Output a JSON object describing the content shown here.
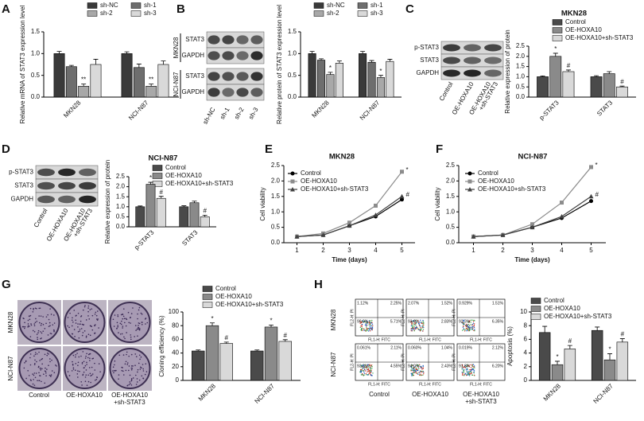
{
  "panels": [
    "A",
    "B",
    "C",
    "D",
    "E",
    "F",
    "G",
    "H"
  ],
  "blots": [
    {
      "groups": [
        {
          "name": "MKN28",
          "rows": [
            "STAT3",
            "GAPDH"
          ]
        },
        {
          "name": "NCI-N87",
          "rows": [
            "STAT3",
            "GAPDH"
          ]
        }
      ],
      "lanes": [
        [
          "sh-NC"
        ],
        [
          "sh-1"
        ],
        [
          "sh-2"
        ],
        [
          "sh-3"
        ]
      ]
    },
    {
      "groups": [
        {
          "rows": [
            "p-STAT3",
            "STAT3",
            "GAPDH"
          ]
        }
      ],
      "lanes": [
        [
          "Control"
        ],
        [
          "OE-HOXA10"
        ],
        [
          "OE-HOXA10",
          "+sh-STAT3"
        ]
      ]
    },
    {
      "groups": [
        {
          "rows": [
            "p-STAT3",
            "STAT3",
            "GAPDH"
          ]
        }
      ],
      "lanes": [
        [
          "Control"
        ],
        [
          "OE-HOXA10"
        ],
        [
          "OE-HOXA10",
          "+sh-STAT3"
        ]
      ]
    }
  ],
  "colonies": {
    "rows": [
      "MKN28",
      "NCI-N87"
    ],
    "columns": [
      [
        "Control"
      ],
      [
        "OE-HOXA10"
      ],
      [
        "OE-HOXA10",
        "+sh-STAT3"
      ]
    ]
  },
  "flow": {
    "rows": [
      "MKN28",
      "NCI-N87"
    ],
    "columns": [
      [
        "Control"
      ],
      [
        "OE-HOXA10"
      ],
      [
        "OE-HOXA10",
        "+sh-STAT3"
      ]
    ],
    "y_label": "FL2-H: PI",
    "x_label": "FL1-H: FITC",
    "quadrants": [
      [
        [
          "1.12%",
          "2.25%",
          "90.9%",
          "5.71%"
        ],
        [
          "2.07%",
          "1.52%",
          "93.6%",
          "2.83%"
        ],
        [
          "0.929%",
          "1.51%",
          "92.3%",
          "6.35%"
        ]
      ],
      [
        [
          "0.061%",
          "2.11%",
          "93.3%",
          "4.55%"
        ],
        [
          "0.060%",
          "1.04%",
          "94.0%",
          "2.43%"
        ],
        [
          "0.019%",
          "2.12%",
          "91.8%",
          "6.20%"
        ]
      ]
    ]
  },
  "chart_data": [
    {
      "type": "bar",
      "y_label": "Relative mRNA of STAT3 expression level",
      "categories": [
        "MKN28",
        "NCI-N87"
      ],
      "ylim": [
        0,
        1.5
      ],
      "yticks": [
        {
          "value": 0,
          "label": "0.0"
        },
        0.5,
        {
          "value": 1,
          "label": "1.0"
        },
        1.5
      ],
      "series": [
        {
          "name": "sh-NC",
          "color": "#3a3a3a",
          "values": [
            1.0,
            1.0
          ],
          "errors": [
            0.05,
            0.04
          ],
          "sig": [
            null,
            null
          ]
        },
        {
          "name": "sh-1",
          "color": "#6e6e6e",
          "values": [
            0.7,
            0.68
          ],
          "errors": [
            0.03,
            0.08
          ],
          "sig": [
            null,
            null
          ]
        },
        {
          "name": "sh-2",
          "color": "#a8a8a8",
          "values": [
            0.25,
            0.25
          ],
          "errors": [
            0.05,
            0.05
          ],
          "sig": [
            "**",
            "**"
          ]
        },
        {
          "name": "sh-3",
          "color": "#d9d9d9",
          "values": [
            0.75,
            0.75
          ],
          "errors": [
            0.12,
            0.08
          ],
          "sig": [
            null,
            null
          ]
        }
      ]
    },
    {
      "type": "bar",
      "y_label": "Relative protein of STAT3 expression level",
      "categories": [
        "MKN28",
        "NCI-N87"
      ],
      "ylim": [
        0,
        1.5
      ],
      "yticks": [
        {
          "value": 0,
          "label": "0.0"
        },
        0.5,
        {
          "value": 1,
          "label": "1.0"
        },
        1.5
      ],
      "series": [
        {
          "name": "sh-NC",
          "color": "#3a3a3a",
          "values": [
            1.0,
            1.0
          ],
          "errors": [
            0.05,
            0.05
          ],
          "sig": [
            null,
            null
          ]
        },
        {
          "name": "sh-1",
          "color": "#6e6e6e",
          "values": [
            0.85,
            0.8
          ],
          "errors": [
            0.03,
            0.04
          ],
          "sig": [
            null,
            null
          ]
        },
        {
          "name": "sh-2",
          "color": "#a8a8a8",
          "values": [
            0.52,
            0.45
          ],
          "errors": [
            0.05,
            0.05
          ],
          "sig": [
            "*",
            "*"
          ]
        },
        {
          "name": "sh-3",
          "color": "#d9d9d9",
          "values": [
            0.78,
            0.82
          ],
          "errors": [
            0.05,
            0.05
          ],
          "sig": [
            null,
            null
          ]
        }
      ]
    },
    {
      "type": "bar",
      "title": "MKN28",
      "y_label": "Relative expression of protein",
      "categories": [
        "p-STAT3",
        "STAT3"
      ],
      "ylim": [
        0,
        2.5
      ],
      "yticks": [
        {
          "value": 0,
          "label": "0.0"
        },
        0.5,
        {
          "value": 1,
          "label": "1.0"
        },
        1.5,
        {
          "value": 2,
          "label": "2.0"
        },
        2.5
      ],
      "series": [
        {
          "name": "Control",
          "color": "#4a4a4a",
          "values": [
            1.0,
            1.0
          ],
          "errors": [
            0.04,
            0.05
          ],
          "sig": [
            null,
            null
          ]
        },
        {
          "name": "OE-HOXA10",
          "color": "#8a8a8a",
          "values": [
            2.0,
            1.15
          ],
          "errors": [
            0.15,
            0.1
          ],
          "sig": [
            "*",
            null
          ]
        },
        {
          "name": "OE-HOXA10+sh-STAT3",
          "color": "#d9d9d9",
          "values": [
            1.25,
            0.5
          ],
          "errors": [
            0.08,
            0.04
          ],
          "sig": [
            "#",
            "#"
          ]
        }
      ]
    },
    {
      "type": "bar",
      "title": "NCI-N87",
      "y_label": "Relative expression of protein",
      "categories": [
        "p-STAT3",
        "STAT3"
      ],
      "ylim": [
        0,
        2.5
      ],
      "yticks": [
        {
          "value": 0,
          "label": "0.0"
        },
        0.5,
        {
          "value": 1,
          "label": "1.0"
        },
        1.5,
        {
          "value": 2,
          "label": "2.0"
        },
        2.5
      ],
      "series": [
        {
          "name": "Control",
          "color": "#4a4a4a",
          "values": [
            1.0,
            1.0
          ],
          "errors": [
            0.04,
            0.05
          ],
          "sig": [
            null,
            null
          ]
        },
        {
          "name": "OE-HOXA10",
          "color": "#8a8a8a",
          "values": [
            2.12,
            1.2
          ],
          "errors": [
            0.1,
            0.08
          ],
          "sig": [
            "*",
            null
          ]
        },
        {
          "name": "OE-HOXA10+sh-STAT3",
          "color": "#d9d9d9",
          "values": [
            1.42,
            0.5
          ],
          "errors": [
            0.1,
            0.08
          ],
          "sig": [
            "#",
            "#"
          ]
        }
      ]
    },
    {
      "type": "line",
      "title": "MKN28",
      "x_label": "Time (days)",
      "y_label": "Cell viability",
      "x": [
        1,
        2,
        3,
        4,
        5
      ],
      "xlim": [
        0.5,
        5.5
      ],
      "xticks": [
        1,
        2,
        3,
        4,
        5
      ],
      "ylim": [
        0,
        2.5
      ],
      "yticks": [
        {
          "value": 0,
          "label": "0.0"
        },
        0.5,
        {
          "value": 1,
          "label": "1.0"
        },
        1.5,
        {
          "value": 2,
          "label": "2.0"
        },
        2.5
      ],
      "series": [
        {
          "name": "Control",
          "color": "#000000",
          "marker": "circle",
          "values": [
            0.2,
            0.25,
            0.55,
            0.85,
            1.4
          ],
          "sig": [
            null,
            null,
            null,
            null,
            null
          ]
        },
        {
          "name": "OE-HOXA10",
          "color": "#8c8c8c",
          "marker": "square",
          "values": [
            0.2,
            0.3,
            0.65,
            1.2,
            2.3
          ],
          "sig": [
            null,
            null,
            null,
            null,
            "*"
          ]
        },
        {
          "name": "OE-HOXA10+sh-STAT3",
          "color": "#404040",
          "marker": "triangle",
          "values": [
            0.2,
            0.25,
            0.55,
            0.9,
            1.5
          ],
          "sig": [
            null,
            null,
            null,
            null,
            "#"
          ]
        }
      ]
    },
    {
      "type": "line",
      "title": "NCI-N87",
      "x_label": "Time (days)",
      "y_label": "Cell viability",
      "x": [
        1,
        2,
        3,
        4,
        5
      ],
      "xlim": [
        0.5,
        5.5
      ],
      "xticks": [
        1,
        2,
        3,
        4,
        5
      ],
      "ylim": [
        0,
        2.5
      ],
      "yticks": [
        {
          "value": 0,
          "label": "0.0"
        },
        0.5,
        {
          "value": 1,
          "label": "1.0"
        },
        1.5,
        {
          "value": 2,
          "label": "2.0"
        },
        2.5
      ],
      "series": [
        {
          "name": "Control",
          "color": "#000000",
          "marker": "circle",
          "values": [
            0.2,
            0.25,
            0.5,
            0.8,
            1.35
          ],
          "sig": [
            null,
            null,
            null,
            null,
            null
          ]
        },
        {
          "name": "OE-HOXA10",
          "color": "#8c8c8c",
          "marker": "square",
          "values": [
            0.2,
            0.25,
            0.6,
            1.3,
            2.45
          ],
          "sig": [
            null,
            null,
            null,
            null,
            "*"
          ]
        },
        {
          "name": "OE-HOXA10+sh-STAT3",
          "color": "#404040",
          "marker": "triangle",
          "values": [
            0.2,
            0.25,
            0.5,
            0.85,
            1.5
          ],
          "sig": [
            null,
            null,
            null,
            null,
            "#"
          ]
        }
      ]
    },
    {
      "type": "bar",
      "y_label": "Cloning efficiency (%)",
      "categories": [
        "MKN28",
        "NCI-N87"
      ],
      "ylim": [
        0,
        100
      ],
      "yticks": [
        0,
        20,
        40,
        60,
        80,
        100
      ],
      "series": [
        {
          "name": "Control",
          "color": "#4a4a4a",
          "values": [
            43,
            43
          ],
          "errors": [
            1.5,
            1.5
          ],
          "sig": [
            null,
            null
          ]
        },
        {
          "name": "OE-HOXA10",
          "color": "#8a8a8a",
          "values": [
            80,
            78
          ],
          "errors": [
            4,
            3
          ],
          "sig": [
            "*",
            "*"
          ]
        },
        {
          "name": "OE-HOXA10+sh-STAT3",
          "color": "#d9d9d9",
          "values": [
            54,
            57
          ],
          "errors": [
            2,
            2.5
          ],
          "sig": [
            "#",
            "#"
          ]
        }
      ]
    },
    {
      "type": "bar",
      "y_label": "Apoptosis (%)",
      "categories": [
        "MKN28",
        "NCI-N87"
      ],
      "ylim": [
        0,
        10
      ],
      "yticks": [
        0,
        2,
        4,
        6,
        8,
        10
      ],
      "series": [
        {
          "name": "Control",
          "color": "#4a4a4a",
          "values": [
            7.0,
            7.3
          ],
          "errors": [
            0.9,
            0.5
          ],
          "sig": [
            null,
            null
          ]
        },
        {
          "name": "OE-HOXA10",
          "color": "#8a8a8a",
          "values": [
            2.3,
            3.0
          ],
          "errors": [
            0.5,
            0.9
          ],
          "sig": [
            "*",
            "*"
          ]
        },
        {
          "name": "OE-HOXA10+sh-STAT3",
          "color": "#d9d9d9",
          "values": [
            4.6,
            5.6
          ],
          "errors": [
            0.5,
            0.5
          ],
          "sig": [
            "#",
            "#"
          ]
        }
      ]
    }
  ]
}
